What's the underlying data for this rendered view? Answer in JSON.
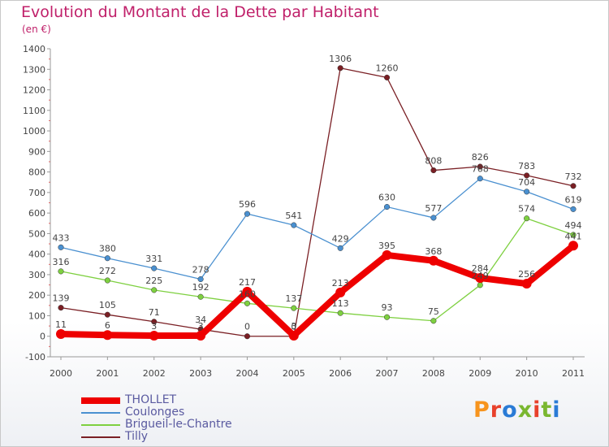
{
  "header": {
    "title": "Evolution du Montant de la Dette par Habitant",
    "unit": "(en €)"
  },
  "logo": {
    "text": "Proxiti",
    "colors": [
      "#f7941d",
      "#e8412c",
      "#2a7bd6",
      "#7ab730",
      "#e8412c",
      "#7ab730",
      "#2a7bd6"
    ]
  },
  "chart_data": {
    "type": "line",
    "title": "Evolution du Montant de la Dette par Habitant",
    "ylabel": "(en €)",
    "xlabel": "",
    "x": [
      "2000",
      "2001",
      "2002",
      "2003",
      "2004",
      "2005",
      "2006",
      "2007",
      "2008",
      "2009",
      "2010",
      "2011"
    ],
    "ylim": [
      -100,
      1400
    ],
    "yticks": [
      "-100",
      "0",
      "100",
      "200",
      "300",
      "400",
      "500",
      "600",
      "700",
      "800",
      "900",
      "1000",
      "1100",
      "1200",
      "1300",
      "1400"
    ],
    "grid": false,
    "legend_position": "bottom-left",
    "series": [
      {
        "name": "THOLLET",
        "color": "#ee0000",
        "values": [
          11,
          6,
          3,
          3,
          217,
          3,
          213,
          395,
          368,
          284,
          256,
          441
        ],
        "labels": [
          "11",
          "6",
          "3",
          "3",
          "217",
          "3",
          "213",
          "395",
          "368",
          "284",
          "256",
          "441"
        ]
      },
      {
        "name": "Coulonges",
        "color": "#4a90d0",
        "values": [
          433,
          380,
          331,
          278,
          596,
          541,
          429,
          630,
          577,
          768,
          704,
          619
        ],
        "labels": [
          "433",
          "380",
          "331",
          "278",
          "596",
          "541",
          "429",
          "630",
          "577",
          "768",
          "704",
          "619"
        ]
      },
      {
        "name": "Brigueil-le-Chantre",
        "color": "#7ed040",
        "values": [
          316,
          272,
          225,
          192,
          160,
          137,
          113,
          93,
          75,
          249,
          574,
          494
        ],
        "labels": [
          "316",
          "272",
          "225",
          "192",
          "160",
          "137",
          "113",
          "93",
          "75",
          "249",
          "574",
          "494"
        ]
      },
      {
        "name": "Tilly",
        "color": "#7a1f24",
        "values": [
          139,
          105,
          71,
          34,
          0,
          0,
          1306,
          1260,
          808,
          826,
          783,
          732
        ],
        "labels": [
          "139",
          "105",
          "71",
          "34",
          "0",
          "0",
          "1306",
          "1260",
          "808",
          "826",
          "783",
          "732"
        ]
      }
    ]
  }
}
